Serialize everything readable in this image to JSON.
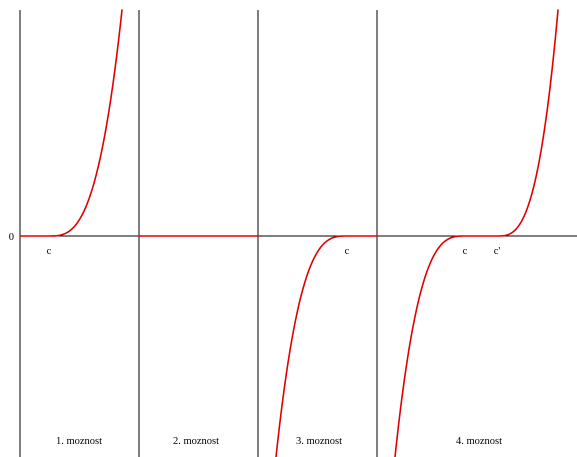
{
  "zero_label": "0",
  "panels": [
    {
      "caption": "1. moznost",
      "point_labels": [
        "c"
      ]
    },
    {
      "caption": "2. moznost",
      "point_labels": []
    },
    {
      "caption": "3. moznost",
      "point_labels": [
        "c"
      ]
    },
    {
      "caption": "4. moznost",
      "point_labels": [
        "c",
        "c'"
      ]
    }
  ],
  "colors": {
    "curve": "#e00000",
    "axis": "#000000",
    "background": "#ffffff"
  }
}
